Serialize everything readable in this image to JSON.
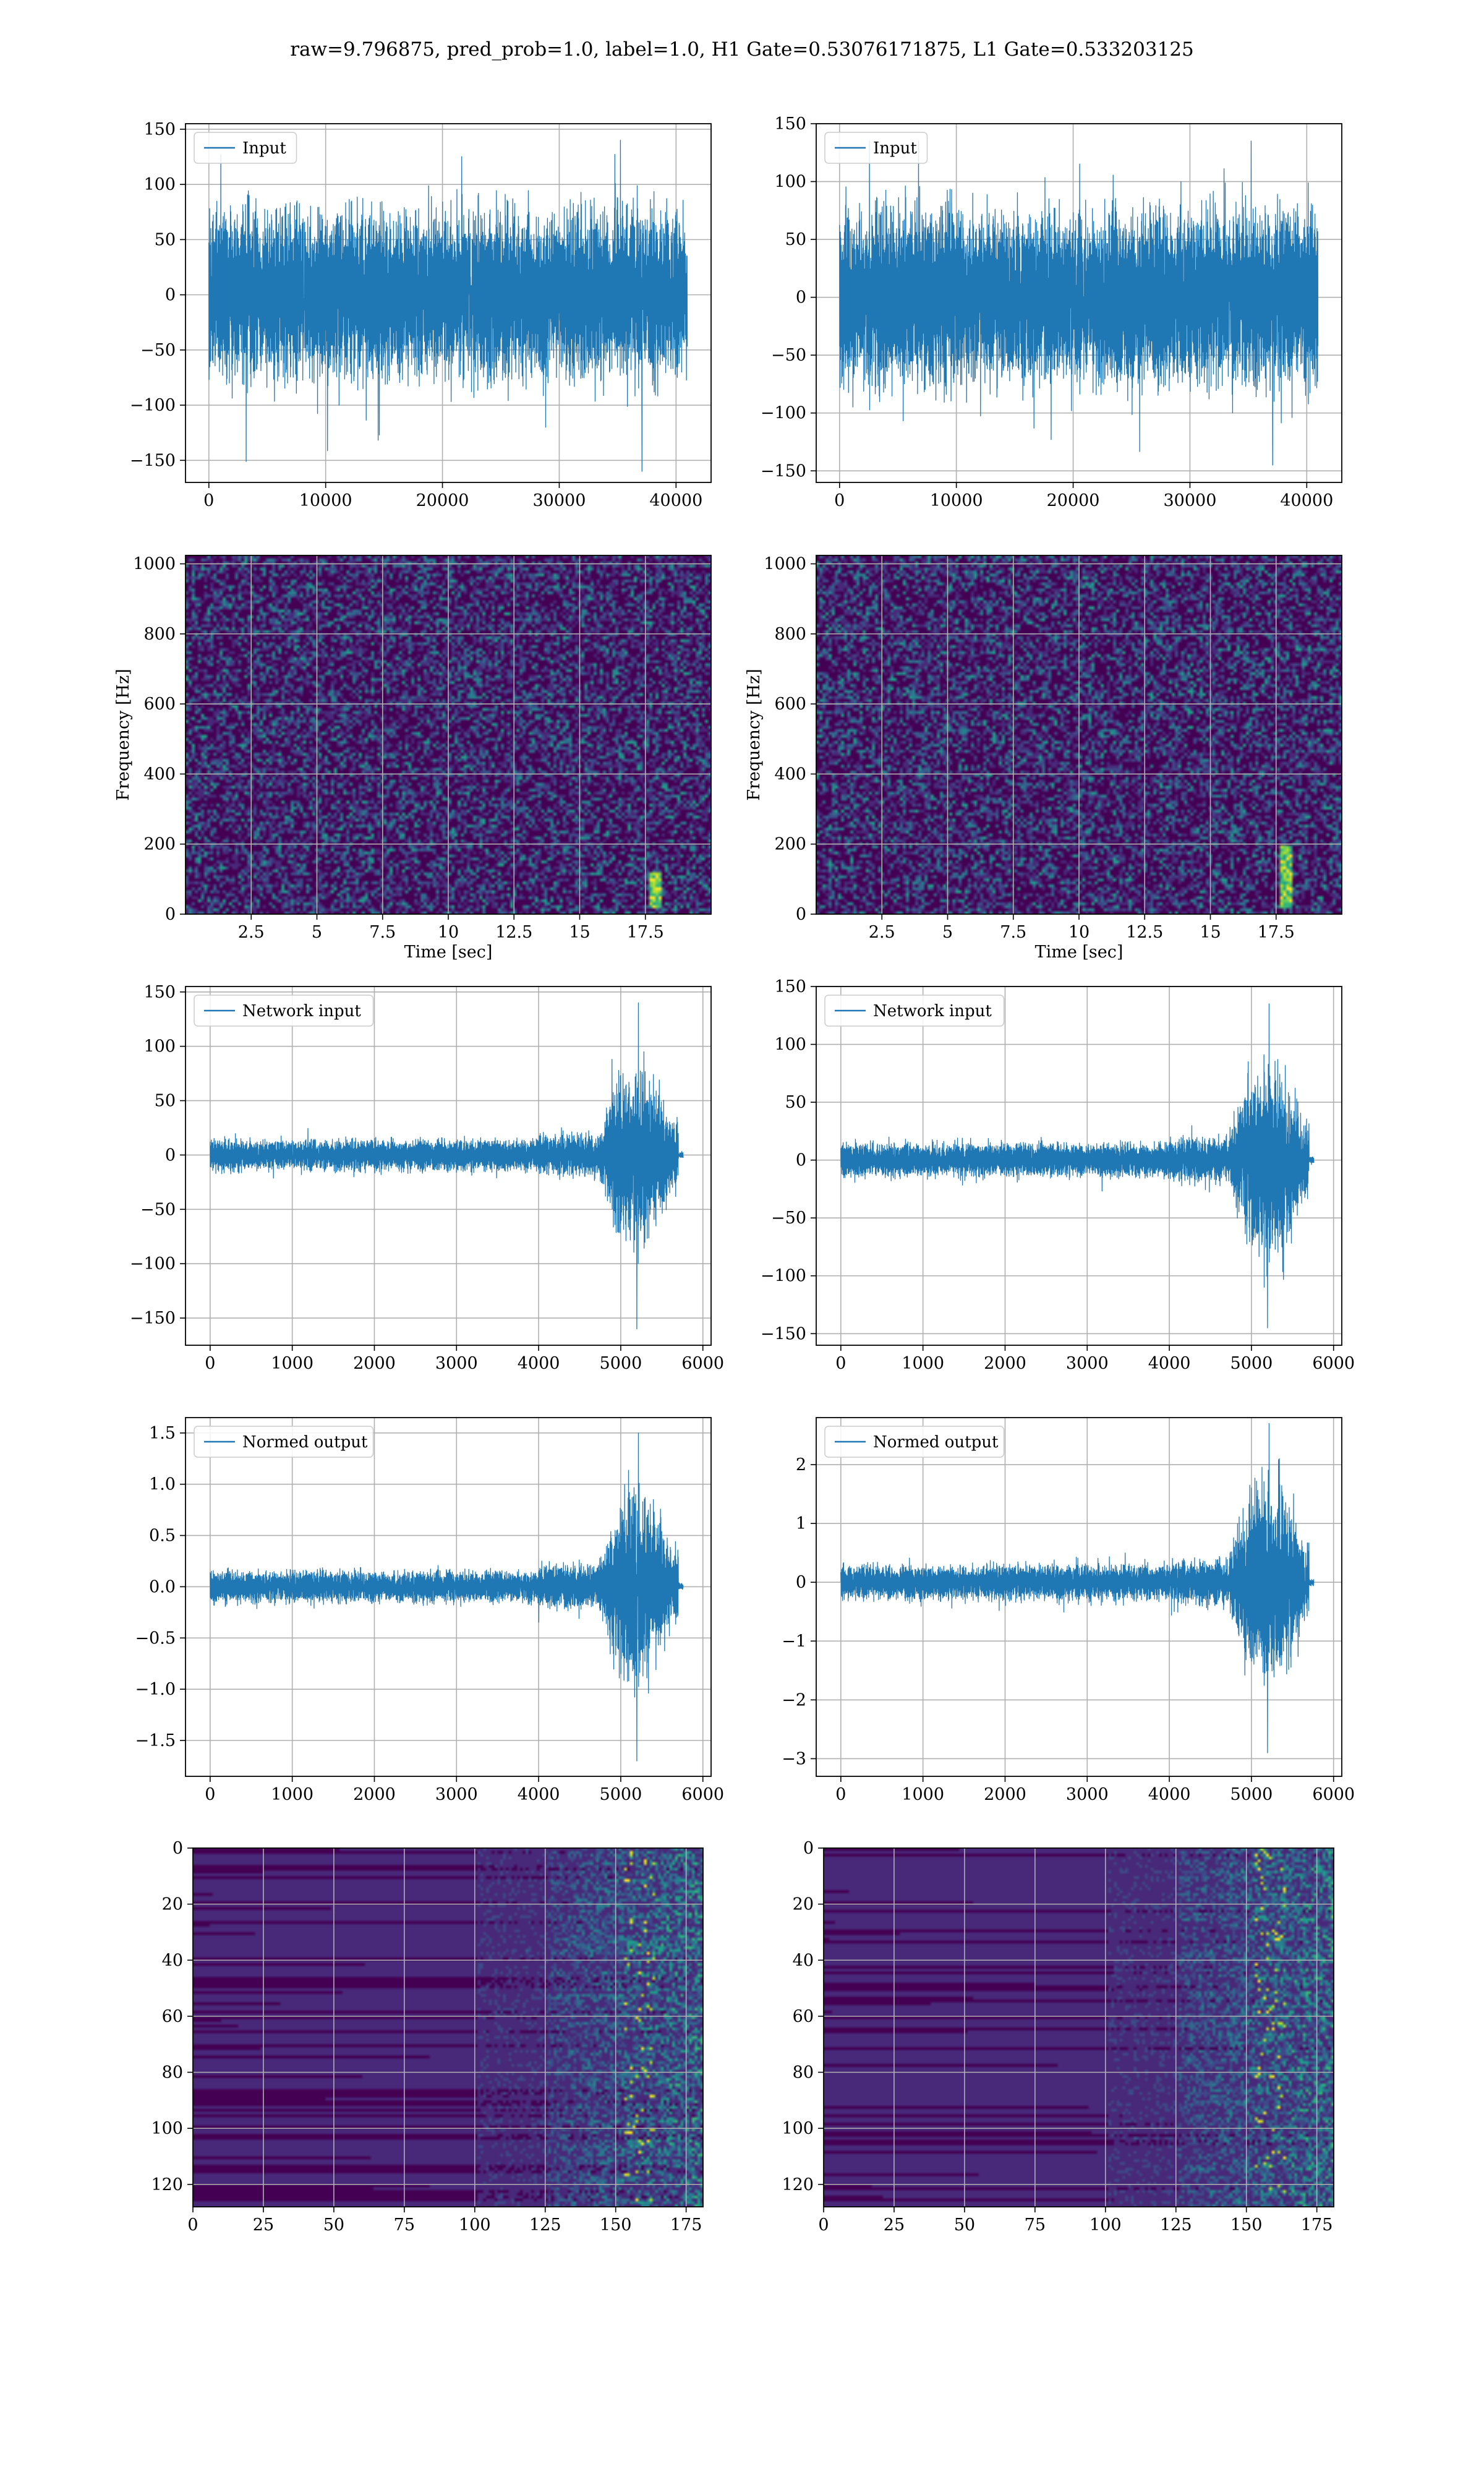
{
  "suptitle": "raw=9.796875, pred_prob=1.0, label=1.0, H1 Gate=0.53076171875, L1 Gate=0.533203125",
  "colors": {
    "line": "#1f77b4",
    "grid": "#b0b0b0",
    "viridis_low": "#440154",
    "viridis_mid": "#21918c",
    "viridis_high": "#fde725"
  },
  "chart_data": [
    {
      "id": "input_h1",
      "type": "line",
      "series": [
        {
          "name": "Input"
        }
      ],
      "xlim": [
        -2000,
        43000
      ],
      "ylim": [
        -170,
        155
      ],
      "xticks": [
        0,
        10000,
        20000,
        30000,
        40000
      ],
      "yticks": [
        -150,
        -100,
        -50,
        0,
        50,
        100,
        150
      ],
      "xlabel": "",
      "ylabel": "",
      "grid": true,
      "legend": "upper left",
      "signal": {
        "n": 40960,
        "envelope": "stationary",
        "typical_amp": 65,
        "max": 140,
        "min": -160
      }
    },
    {
      "id": "input_l1",
      "type": "line",
      "series": [
        {
          "name": "Input"
        }
      ],
      "xlim": [
        -2000,
        43000
      ],
      "ylim": [
        -160,
        150
      ],
      "xticks": [
        0,
        10000,
        20000,
        30000,
        40000
      ],
      "yticks": [
        -150,
        -100,
        -50,
        0,
        50,
        100,
        150
      ],
      "xlabel": "",
      "ylabel": "",
      "grid": true,
      "legend": "upper left",
      "signal": {
        "n": 40960,
        "envelope": "stationary",
        "typical_amp": 65,
        "max": 135,
        "min": -145
      }
    },
    {
      "id": "spec_h1",
      "type": "heatmap",
      "xlim": [
        0,
        20
      ],
      "ylim": [
        0,
        1024
      ],
      "xticks": [
        2.5,
        5.0,
        7.5,
        10.0,
        12.5,
        15.0,
        17.5
      ],
      "yticks": [
        0,
        200,
        400,
        600,
        800,
        1000
      ],
      "xlabel": "Time [sec]",
      "ylabel": "Frequency [Hz]",
      "grid": true,
      "colormap": "viridis",
      "feature": {
        "t": 17.8,
        "f_max": 120
      }
    },
    {
      "id": "spec_l1",
      "type": "heatmap",
      "xlim": [
        0,
        20
      ],
      "ylim": [
        0,
        1024
      ],
      "xticks": [
        2.5,
        5.0,
        7.5,
        10.0,
        12.5,
        15.0,
        17.5
      ],
      "yticks": [
        0,
        200,
        400,
        600,
        800,
        1000
      ],
      "xlabel": "Time [sec]",
      "ylabel": "Frequency [Hz]",
      "grid": true,
      "colormap": "viridis",
      "feature": {
        "t": 17.8,
        "f_max": 200
      }
    },
    {
      "id": "net_h1",
      "type": "line",
      "series": [
        {
          "name": "Network input"
        }
      ],
      "xlim": [
        -300,
        6100
      ],
      "ylim": [
        -175,
        155
      ],
      "xticks": [
        0,
        1000,
        2000,
        3000,
        4000,
        5000,
        6000
      ],
      "yticks": [
        -150,
        -100,
        -50,
        0,
        50,
        100,
        150
      ],
      "xlabel": "",
      "ylabel": "",
      "grid": true,
      "legend": "upper left",
      "signal": {
        "n": 5760,
        "envelope": "chirp",
        "typical_amp": 12,
        "burst_start": 4700,
        "burst_end": 5760,
        "max": 140,
        "min": -160
      }
    },
    {
      "id": "net_l1",
      "type": "line",
      "series": [
        {
          "name": "Network input"
        }
      ],
      "xlim": [
        -300,
        6100
      ],
      "ylim": [
        -160,
        150
      ],
      "xticks": [
        0,
        1000,
        2000,
        3000,
        4000,
        5000,
        6000
      ],
      "yticks": [
        -150,
        -100,
        -50,
        0,
        50,
        100,
        150
      ],
      "xlabel": "",
      "ylabel": "",
      "grid": true,
      "legend": "upper left",
      "signal": {
        "n": 5760,
        "envelope": "chirp",
        "typical_amp": 12,
        "burst_start": 4700,
        "burst_end": 5760,
        "max": 135,
        "min": -145
      }
    },
    {
      "id": "norm_h1",
      "type": "line",
      "series": [
        {
          "name": "Normed output"
        }
      ],
      "xlim": [
        -300,
        6100
      ],
      "ylim": [
        -1.85,
        1.65
      ],
      "xticks": [
        0,
        1000,
        2000,
        3000,
        4000,
        5000,
        6000
      ],
      "yticks": [
        -1.5,
        -1.0,
        -0.5,
        0.0,
        0.5,
        1.0,
        1.5
      ],
      "yticklabels": [
        "−1.5",
        "−1.0",
        "−0.5",
        "0.0",
        "0.5",
        "1.0",
        "1.5"
      ],
      "xlabel": "",
      "ylabel": "",
      "grid": true,
      "legend": "upper left",
      "signal": {
        "n": 5760,
        "envelope": "chirp",
        "typical_amp": 0.13,
        "burst_start": 4700,
        "burst_end": 5760,
        "max": 1.5,
        "min": -1.7
      }
    },
    {
      "id": "norm_l1",
      "type": "line",
      "series": [
        {
          "name": "Normed output"
        }
      ],
      "xlim": [
        -300,
        6100
      ],
      "ylim": [
        -3.3,
        2.8
      ],
      "xticks": [
        0,
        1000,
        2000,
        3000,
        4000,
        5000,
        6000
      ],
      "yticks": [
        -3,
        -2,
        -1,
        0,
        1,
        2
      ],
      "xlabel": "",
      "ylabel": "",
      "grid": true,
      "legend": "upper left",
      "signal": {
        "n": 5760,
        "envelope": "chirp",
        "typical_amp": 0.25,
        "burst_start": 4700,
        "burst_end": 5760,
        "max": 2.7,
        "min": -2.9
      }
    },
    {
      "id": "feat_h1",
      "type": "heatmap",
      "xlim": [
        0,
        181
      ],
      "ylim": [
        128,
        0
      ],
      "xticks": [
        0,
        25,
        50,
        75,
        100,
        125,
        150,
        175
      ],
      "yticks": [
        0,
        20,
        40,
        60,
        80,
        100,
        120
      ],
      "xlabel": "",
      "ylabel": "",
      "grid": true,
      "colormap": "viridis",
      "feature": {
        "active_from": 125,
        "peak_near": 158
      }
    },
    {
      "id": "feat_l1",
      "type": "heatmap",
      "xlim": [
        0,
        181
      ],
      "ylim": [
        128,
        0
      ],
      "xticks": [
        0,
        25,
        50,
        75,
        100,
        125,
        150,
        175
      ],
      "yticks": [
        0,
        20,
        40,
        60,
        80,
        100,
        120
      ],
      "xlabel": "",
      "ylabel": "",
      "grid": true,
      "colormap": "viridis",
      "feature": {
        "active_from": 125,
        "peak_near": 158
      }
    }
  ]
}
